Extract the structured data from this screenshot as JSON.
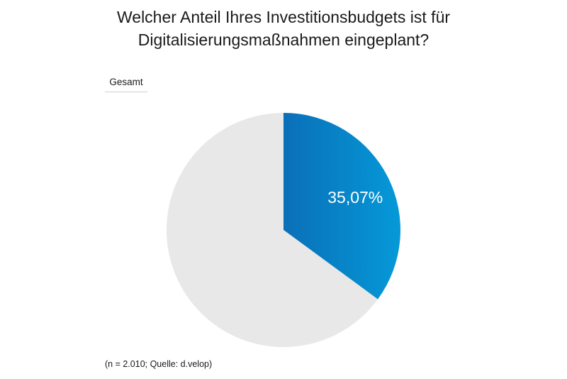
{
  "title_lines": [
    "Welcher Anteil Ihres Investitionsbudgets ist für",
    "Digitalisierungsmaßnahmen eingeplant?"
  ],
  "tab_label": "Gesamt",
  "footnote": "(n = 2.010; Quelle: d.velop)",
  "colors": {
    "slice_gradient_start": "#0a6fb8",
    "slice_gradient_end": "#0599d8",
    "remainder": "#e8e8e8",
    "label_text": "#ffffff"
  },
  "chart_data": {
    "type": "pie",
    "title": "Welcher Anteil Ihres Investitionsbudgets ist für Digitalisierungsmaßnahmen eingeplant?",
    "slices": [
      {
        "value": 35.07,
        "label": "35,07%"
      },
      {
        "value": 64.93,
        "label": ""
      }
    ]
  }
}
